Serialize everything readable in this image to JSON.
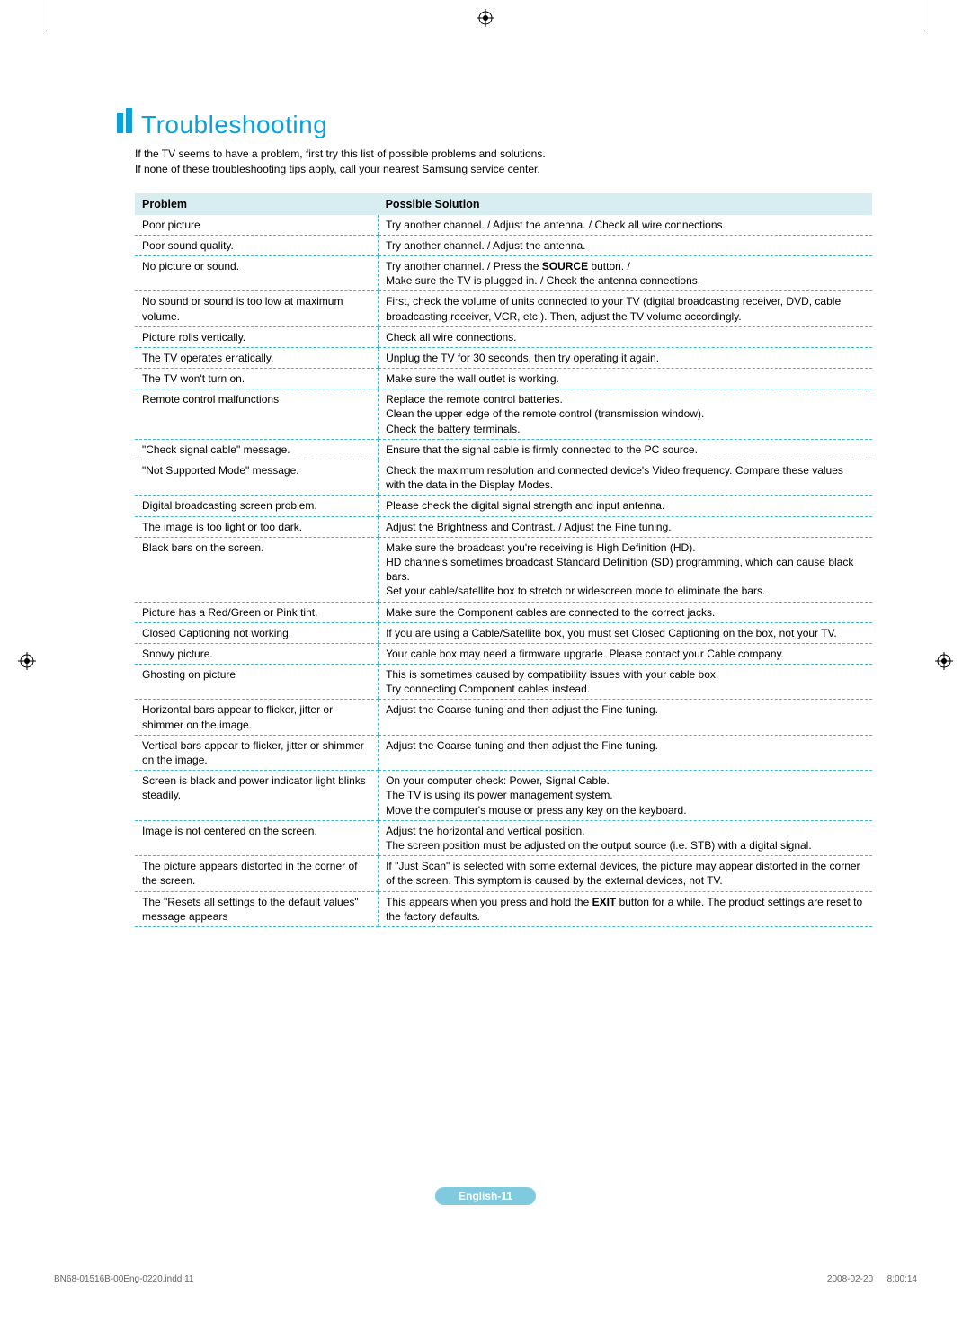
{
  "title": "Troubleshooting",
  "intro": {
    "line1": "If the TV seems to have a problem, first try this list of possible problems and solutions.",
    "line2": "If none of these troubleshooting tips apply, call your nearest Samsung service center."
  },
  "colors": {
    "accent": "#0aa1da",
    "header_bg": "#d7edf1",
    "border": "#3cb7d8",
    "badge_bg": "#7fcade",
    "badge_text": "#ffffff",
    "text": "#000000",
    "footer_text": "#666666",
    "page_bg": "#ffffff"
  },
  "typography": {
    "title_fontsize": 28,
    "body_fontsize": 12,
    "header_fontsize": 12.5,
    "font_family": "Arial"
  },
  "table": {
    "type": "table",
    "col_widths": [
      "33%",
      "67%"
    ],
    "border_style": "dashed",
    "headers": [
      "Problem",
      "Possible Solution"
    ],
    "rows": [
      {
        "problem": "Poor picture",
        "solution_html": "Try another channel. / Adjust the antenna. / Check all wire connections."
      },
      {
        "problem": "Poor sound quality.",
        "solution_html": "Try another channel. / Adjust the antenna."
      },
      {
        "problem": "No picture or sound.",
        "solution_html": "Try another channel. / Press the <b>SOURCE</b> button. /<br>Make sure the TV is plugged in. / Check the antenna connections."
      },
      {
        "problem": "No sound or sound is too low at maximum volume.",
        "solution_html": "First, check the volume of units connected to your TV (digital broadcasting receiver, DVD, cable broadcasting receiver, VCR, etc.). Then, adjust the TV volume accordingly."
      },
      {
        "problem": "Picture rolls vertically.",
        "solution_html": "Check all wire connections."
      },
      {
        "problem": "The TV operates erratically.",
        "solution_html": "Unplug the TV for 30 seconds, then try operating it again."
      },
      {
        "problem": "The TV won't turn on.",
        "solution_html": "Make sure the wall outlet is working."
      },
      {
        "problem": "Remote control malfunctions",
        "solution_html": "Replace the remote control batteries.<br>Clean the upper edge of the remote control (transmission window).<br>Check the battery terminals."
      },
      {
        "problem": "\"Check signal cable\" message.",
        "solution_html": "Ensure that the signal cable is firmly connected to the PC source."
      },
      {
        "problem": "\"Not Supported Mode\" message.",
        "solution_html": "Check the maximum resolution and connected device's Video frequency. Compare these values with the data in the Display Modes."
      },
      {
        "problem": "Digital broadcasting screen problem.",
        "solution_html": "Please check the digital signal strength and input antenna."
      },
      {
        "problem": "The image is too light or too dark.",
        "solution_html": "Adjust the Brightness and Contrast. / Adjust the Fine tuning."
      },
      {
        "problem": "Black bars on the screen.",
        "solution_html": "Make sure the broadcast you're receiving is High Definition (HD).<br>HD channels sometimes broadcast Standard Definition (SD) programming, which can cause black bars.<br>Set your cable/satellite box to stretch or widescreen mode to eliminate the bars."
      },
      {
        "problem": "Picture has a Red/Green or Pink tint.",
        "solution_html": "Make sure the Component cables are connected to the correct jacks."
      },
      {
        "problem": "Closed Captioning not working.",
        "solution_html": "If you are using a Cable/Satellite box, you must set Closed Captioning on the box, not your TV."
      },
      {
        "problem": "Snowy picture.",
        "solution_html": "Your cable box may need a firmware upgrade. Please contact your Cable company."
      },
      {
        "problem": "Ghosting on picture",
        "solution_html": "This is sometimes caused by compatibility issues with your cable box.<br>Try connecting Component cables instead."
      },
      {
        "problem": "Horizontal bars appear to flicker, jitter or shimmer on the image.",
        "solution_html": "Adjust the Coarse tuning and then adjust the Fine tuning."
      },
      {
        "problem": "Vertical bars appear to flicker, jitter or shimmer on the image.",
        "solution_html": "Adjust the Coarse tuning and then adjust the Fine tuning."
      },
      {
        "problem": "Screen is black and power indicator light blinks steadily.",
        "solution_html": "On your computer check: Power, Signal Cable.<br>The TV is using its power management system.<br>Move the computer's mouse or press any key on the keyboard."
      },
      {
        "problem": "Image is not centered on the screen.",
        "solution_html": "Adjust the horizontal and vertical position.<br>The screen position must be adjusted on the output source (i.e. STB) with a digital signal."
      },
      {
        "problem": "The picture appears distorted in the corner of the screen.",
        "solution_html": "If \"Just Scan\" is selected with some external devices, the picture may appear distorted in the corner of the screen. This symptom is caused by the external devices, not TV."
      },
      {
        "problem": "The \"Resets all settings to the default values\" message appears",
        "solution_html": "This appears when you press and hold the <b>EXIT</b> button for a while. The product settings are reset to the factory defaults."
      }
    ]
  },
  "page_label": "English-11",
  "footer": {
    "file": "BN68-01516B-00Eng-0220.indd   11",
    "timestamp": "2008-02-20      8:00:14"
  }
}
